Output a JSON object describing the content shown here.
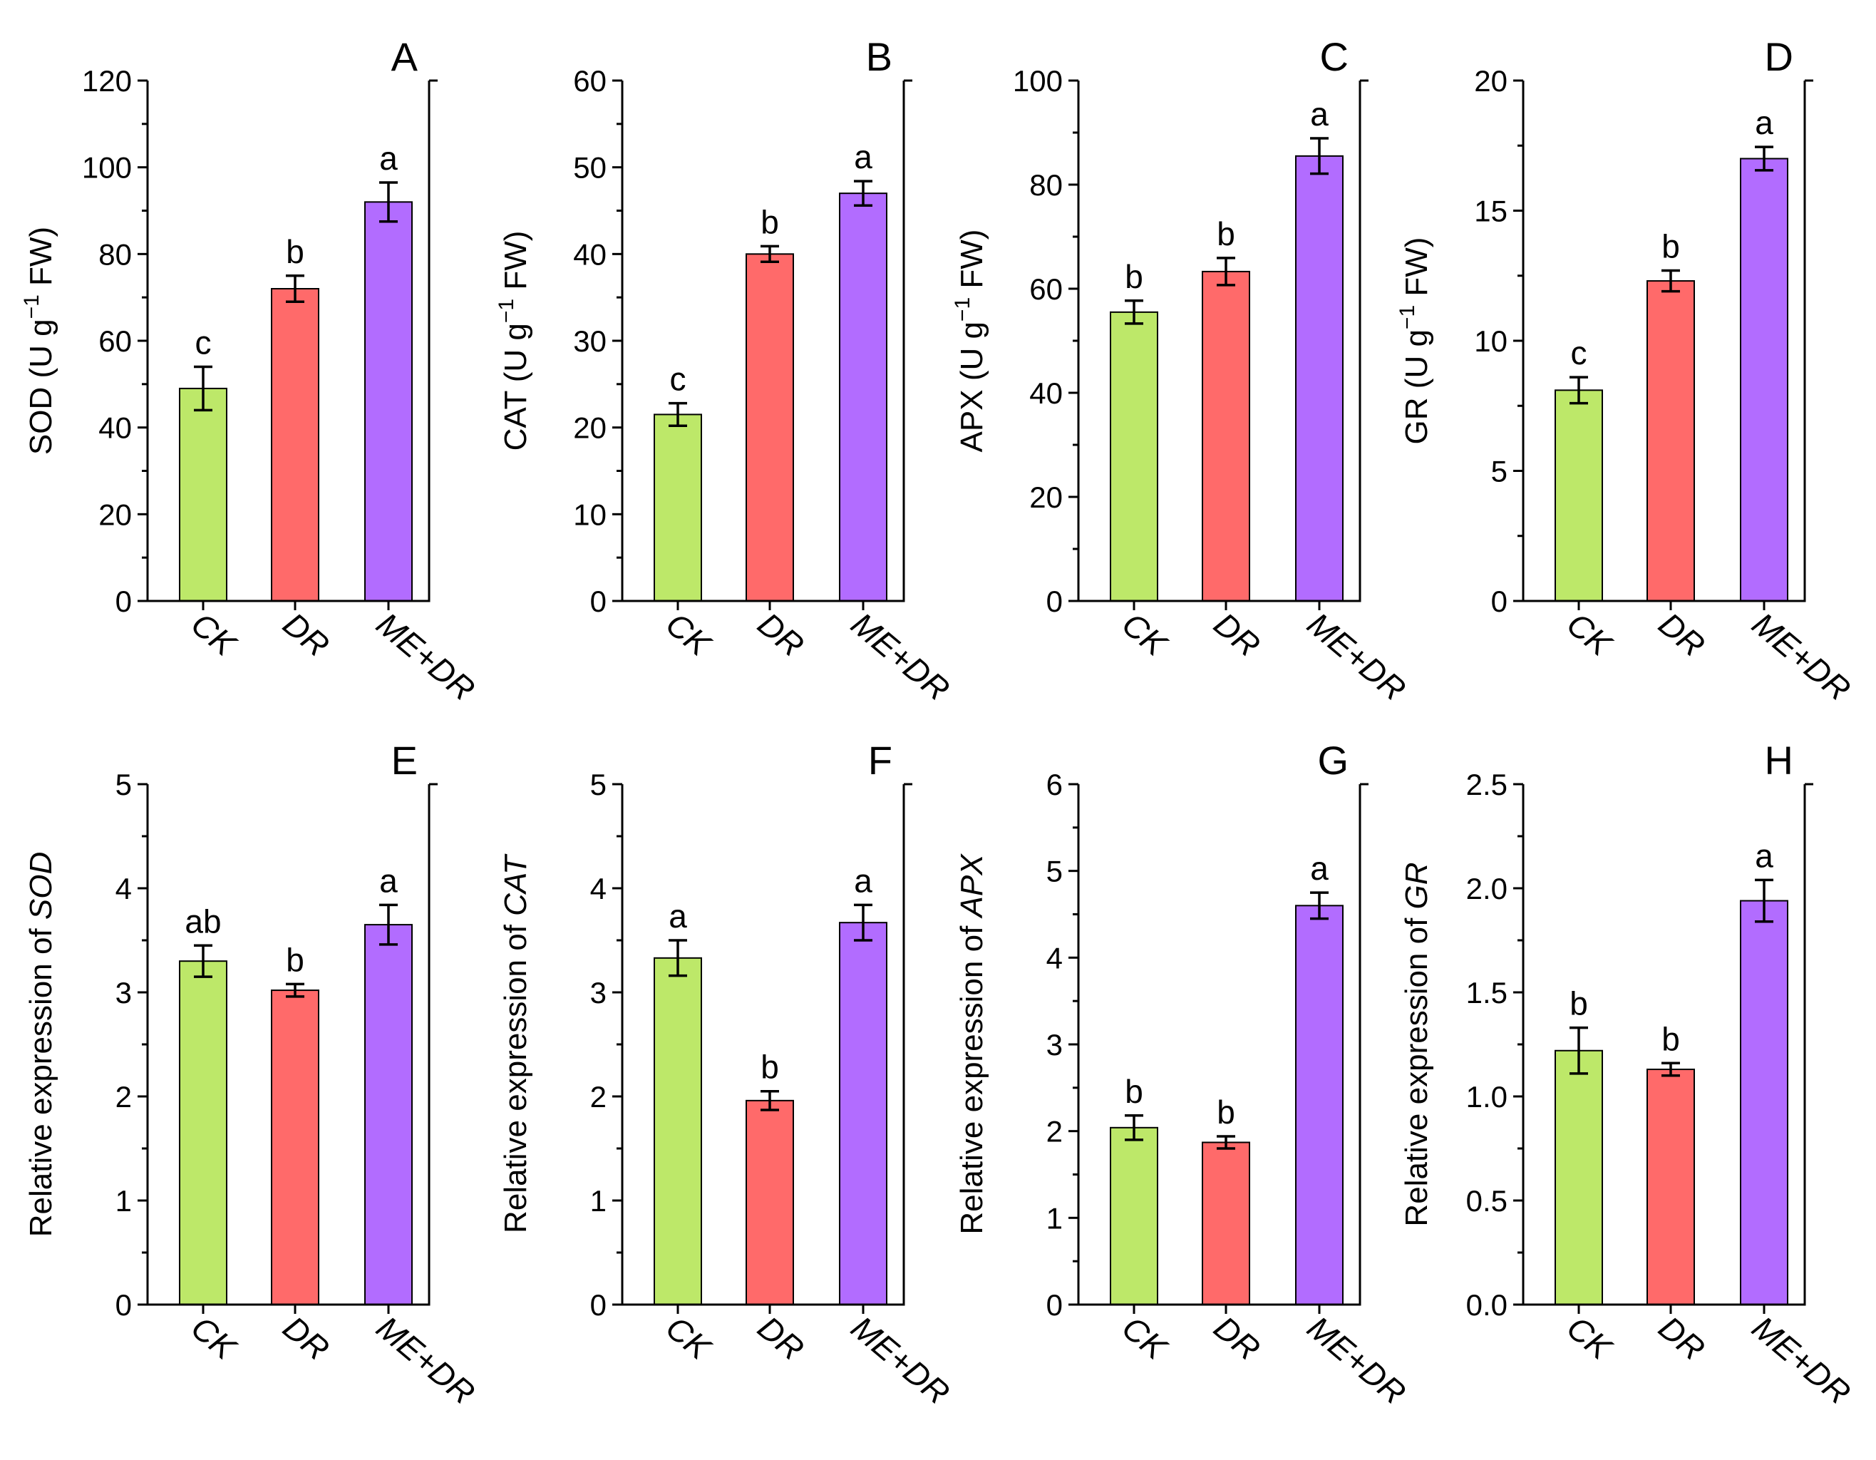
{
  "figure": {
    "categories": [
      "CK",
      "DR",
      "ME+DR"
    ],
    "colors": [
      "#bde869",
      "#ff6a6a",
      "#b26cff"
    ]
  },
  "chart_data": [
    {
      "type": "bar",
      "panel": "A",
      "ylabel_main": "SOD (U g",
      "ylabel_sup": "−1",
      "ylabel_tail": " FW)",
      "ylabel_gene": "",
      "ylim": [
        0,
        120
      ],
      "yticks": [
        0,
        20,
        40,
        60,
        80,
        100,
        120
      ],
      "ytick_labels": [
        "0",
        "20",
        "40",
        "60",
        "80",
        "100",
        "120"
      ],
      "values": [
        49,
        72,
        92
      ],
      "errors": [
        5,
        3,
        4.5
      ],
      "letters": [
        "c",
        "b",
        "a"
      ]
    },
    {
      "type": "bar",
      "panel": "B",
      "ylabel_main": "CAT (U g",
      "ylabel_sup": "−1",
      "ylabel_tail": " FW)",
      "ylabel_gene": "",
      "ylim": [
        0,
        60
      ],
      "yticks": [
        0,
        10,
        20,
        30,
        40,
        50,
        60
      ],
      "ytick_labels": [
        "0",
        "10",
        "20",
        "30",
        "40",
        "50",
        "60"
      ],
      "values": [
        21.5,
        40,
        47
      ],
      "errors": [
        1.3,
        0.9,
        1.4
      ],
      "letters": [
        "c",
        "b",
        "a"
      ]
    },
    {
      "type": "bar",
      "panel": "C",
      "ylabel_main": "APX (U g",
      "ylabel_sup": "−1",
      "ylabel_tail": " FW)",
      "ylabel_gene": "",
      "ylim": [
        0,
        100
      ],
      "yticks": [
        0,
        20,
        40,
        60,
        80,
        100
      ],
      "ytick_labels": [
        "0",
        "20",
        "40",
        "60",
        "80",
        "100"
      ],
      "values": [
        55.5,
        63.3,
        85.5
      ],
      "errors": [
        2.2,
        2.6,
        3.4
      ],
      "letters": [
        "b",
        "b",
        "a"
      ]
    },
    {
      "type": "bar",
      "panel": "D",
      "ylabel_main": "GR (U g",
      "ylabel_sup": "−1",
      "ylabel_tail": " FW)",
      "ylabel_gene": "",
      "ylim": [
        0,
        20
      ],
      "yticks": [
        0,
        5,
        10,
        15,
        20
      ],
      "ytick_labels": [
        "0",
        "5",
        "10",
        "15",
        "20"
      ],
      "values": [
        8.1,
        12.3,
        17
      ],
      "errors": [
        0.5,
        0.4,
        0.45
      ],
      "letters": [
        "c",
        "b",
        "a"
      ]
    },
    {
      "type": "bar",
      "panel": "E",
      "ylabel_main": "Relative expression of ",
      "ylabel_sup": "",
      "ylabel_tail": "",
      "ylabel_gene": "SOD",
      "ylim": [
        0,
        5
      ],
      "yticks": [
        0,
        1,
        2,
        3,
        4,
        5
      ],
      "ytick_labels": [
        "0",
        "1",
        "2",
        "3",
        "4",
        "5"
      ],
      "values": [
        3.3,
        3.02,
        3.65
      ],
      "errors": [
        0.15,
        0.06,
        0.19
      ],
      "letters": [
        "ab",
        "b",
        "a"
      ]
    },
    {
      "type": "bar",
      "panel": "F",
      "ylabel_main": "Relative expression of ",
      "ylabel_sup": "",
      "ylabel_tail": "",
      "ylabel_gene": "CAT",
      "ylim": [
        0,
        5
      ],
      "yticks": [
        0,
        1,
        2,
        3,
        4,
        5
      ],
      "ytick_labels": [
        "0",
        "1",
        "2",
        "3",
        "4",
        "5"
      ],
      "values": [
        3.33,
        1.96,
        3.67
      ],
      "errors": [
        0.17,
        0.09,
        0.17
      ],
      "letters": [
        "a",
        "b",
        "a"
      ]
    },
    {
      "type": "bar",
      "panel": "G",
      "ylabel_main": "Relative expression of ",
      "ylabel_sup": "",
      "ylabel_tail": "",
      "ylabel_gene": "APX",
      "ylim": [
        0,
        6
      ],
      "yticks": [
        0,
        1,
        2,
        3,
        4,
        5,
        6
      ],
      "ytick_labels": [
        "0",
        "1",
        "2",
        "3",
        "4",
        "5",
        "6"
      ],
      "values": [
        2.04,
        1.87,
        4.6
      ],
      "errors": [
        0.14,
        0.07,
        0.15
      ],
      "letters": [
        "b",
        "b",
        "a"
      ]
    },
    {
      "type": "bar",
      "panel": "H",
      "ylabel_main": "Relative expression of ",
      "ylabel_sup": "",
      "ylabel_tail": "",
      "ylabel_gene": "GR",
      "ylim": [
        0,
        2.5
      ],
      "yticks": [
        0,
        0.5,
        1,
        1.5,
        2,
        2.5
      ],
      "ytick_labels": [
        "0.0",
        "0.5",
        "1.0",
        "1.5",
        "2.0",
        "2.5"
      ],
      "values": [
        1.22,
        1.13,
        1.94
      ],
      "errors": [
        0.11,
        0.03,
        0.1
      ],
      "letters": [
        "b",
        "b",
        "a"
      ]
    }
  ]
}
